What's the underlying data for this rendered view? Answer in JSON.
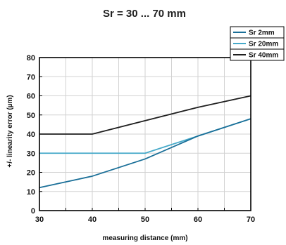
{
  "chart_data": {
    "type": "line",
    "title": "Sr = 30 ... 70 mm",
    "xlabel": "measuring distance (mm)",
    "ylabel": "+/- linearity error (µm)",
    "xlim": [
      30,
      70
    ],
    "ylim": [
      0,
      80
    ],
    "xticks": [
      30,
      40,
      50,
      60,
      70
    ],
    "yticks": [
      0,
      10,
      20,
      30,
      40,
      50,
      60,
      70,
      80
    ],
    "grid": true,
    "legend_position": "top-right",
    "series": [
      {
        "name": "Sr 2mm",
        "color": "#1a6f98",
        "x": [
          30,
          40,
          50,
          60,
          70
        ],
        "y": [
          12,
          18,
          27,
          39,
          48
        ]
      },
      {
        "name": "Sr 20mm",
        "color": "#45a9c9",
        "x": [
          30,
          40,
          50,
          60,
          70
        ],
        "y": [
          30,
          30,
          30,
          39,
          48
        ]
      },
      {
        "name": "Sr 40mm",
        "color": "#1e1e1e",
        "x": [
          30,
          40,
          50,
          60,
          70
        ],
        "y": [
          40,
          40,
          47,
          54,
          60
        ]
      }
    ]
  }
}
